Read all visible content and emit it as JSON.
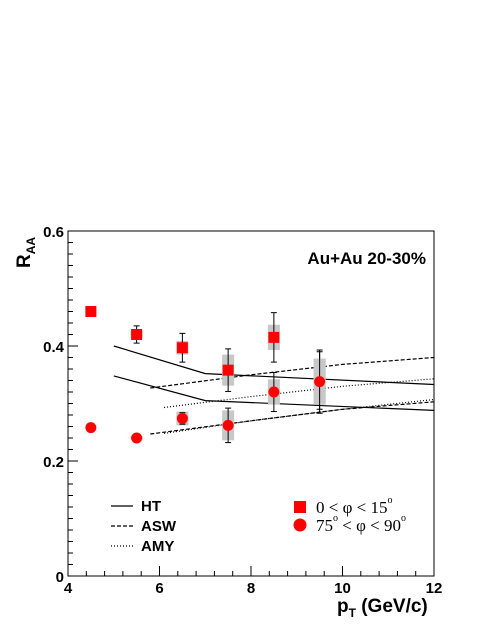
{
  "chart_data": {
    "type": "scatter",
    "xlim": [
      4,
      12
    ],
    "ylim": [
      0,
      0.6
    ],
    "x_ticks": [
      4,
      6,
      8,
      10,
      12
    ],
    "y_ticks": [
      0,
      0.2,
      0.4,
      0.6
    ],
    "x_tick_labels": [
      "4",
      "6",
      "8",
      "10",
      "12"
    ],
    "y_tick_labels": [
      "0",
      "0.2",
      "0.4",
      "0.6"
    ],
    "xlabel": {
      "main": "p",
      "sub": "T",
      "rest": " (GeV/c)"
    },
    "ylabel": {
      "main": "R",
      "sub": "AA"
    },
    "annotation": "Au+Au 20-30%",
    "legend_lines": [
      {
        "label": "HT",
        "style": "solid"
      },
      {
        "label": "ASW",
        "style": "dashed"
      },
      {
        "label": "AMY",
        "style": "dotted"
      }
    ],
    "legend_markers": [
      {
        "marker": "square",
        "color": "#ff0000",
        "parts": [
          "0 < ",
          "φ",
          " < 15",
          "o"
        ]
      },
      {
        "marker": "circle",
        "color": "#ff0000",
        "parts": [
          "75",
          "o",
          " < ",
          "φ",
          " < 90",
          "o"
        ]
      }
    ],
    "series": [
      {
        "marker": "square",
        "color": "#ff0000",
        "points": [
          {
            "x": 4.5,
            "y": 0.46
          },
          {
            "x": 5.5,
            "y": 0.42,
            "err": 0.015,
            "sys": 0.006
          },
          {
            "x": 6.5,
            "y": 0.397,
            "err": 0.025,
            "sys": 0.012
          },
          {
            "x": 7.5,
            "y": 0.358,
            "err": 0.037,
            "sys": 0.027
          },
          {
            "x": 8.5,
            "y": 0.415,
            "err": 0.043,
            "sys": 0.022
          },
          {
            "x": 9.5,
            "y": 0.34,
            "err": 0.05,
            "sys": 0.038
          }
        ]
      },
      {
        "marker": "circle",
        "color": "#ff0000",
        "points": [
          {
            "x": 4.5,
            "y": 0.258
          },
          {
            "x": 5.5,
            "y": 0.24,
            "err": 0.003,
            "sys": 0.003
          },
          {
            "x": 6.5,
            "y": 0.274,
            "err": 0.01,
            "sys": 0.012
          },
          {
            "x": 7.5,
            "y": 0.262,
            "err": 0.03,
            "sys": 0.026
          },
          {
            "x": 8.5,
            "y": 0.32,
            "err": 0.034,
            "sys": 0.022
          },
          {
            "x": 9.5,
            "y": 0.338,
            "err": 0.055,
            "sys": 0.04
          }
        ]
      }
    ],
    "theory_curves": [
      {
        "name": "HT",
        "style": "solid",
        "points": [
          [
            5,
            0.4
          ],
          [
            7,
            0.352
          ],
          [
            12,
            0.333
          ]
        ]
      },
      {
        "name": "HT",
        "style": "solid",
        "points": [
          [
            5,
            0.348
          ],
          [
            7,
            0.305
          ],
          [
            12,
            0.288
          ]
        ]
      },
      {
        "name": "ASW",
        "style": "dashed",
        "points": [
          [
            5.8,
            0.327
          ],
          [
            8,
            0.35
          ],
          [
            10,
            0.368
          ],
          [
            12,
            0.38
          ]
        ]
      },
      {
        "name": "ASW",
        "style": "dashed",
        "points": [
          [
            5.8,
            0.247
          ],
          [
            8,
            0.27
          ],
          [
            10,
            0.29
          ],
          [
            12,
            0.303
          ]
        ]
      },
      {
        "name": "AMY",
        "style": "dotted",
        "points": [
          [
            6.1,
            0.293
          ],
          [
            8,
            0.312
          ],
          [
            10,
            0.33
          ],
          [
            12,
            0.343
          ]
        ]
      },
      {
        "name": "AMY",
        "style": "dotted",
        "points": [
          [
            6.1,
            0.248
          ],
          [
            8,
            0.27
          ],
          [
            10,
            0.29
          ],
          [
            12,
            0.307
          ]
        ]
      }
    ]
  }
}
